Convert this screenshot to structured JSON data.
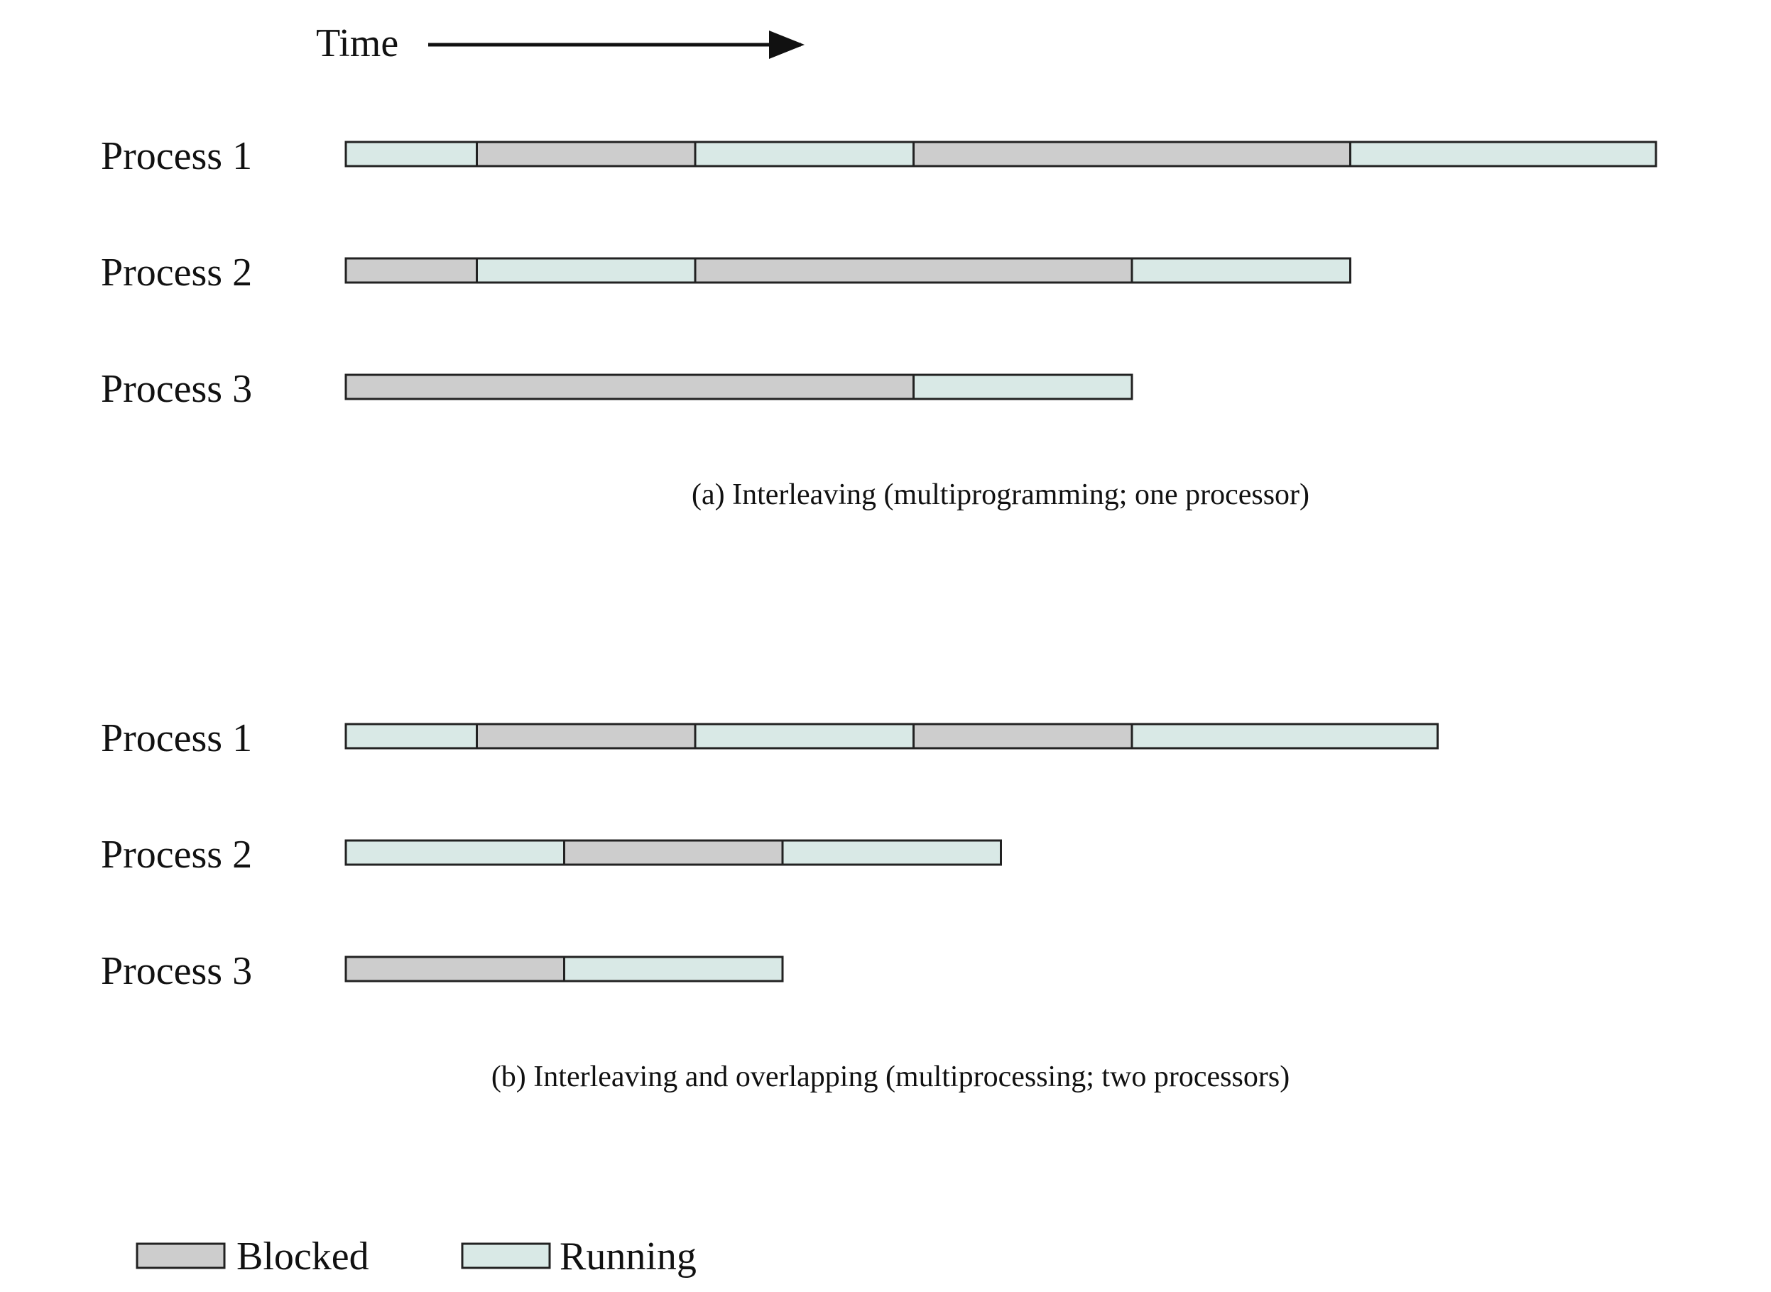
{
  "time_axis": {
    "label": "Time"
  },
  "segment_types": {
    "blocked": {
      "label": "Blocked",
      "color": "#cdcdcd"
    },
    "running": {
      "label": "Running",
      "color": "#d9e9e6"
    }
  },
  "border_color": "#222222",
  "panels": [
    {
      "id": "a",
      "caption": "(a) Interleaving (multiprogramming; one processor)",
      "processes": [
        {
          "label": "Process 1",
          "segments": [
            [
              "running",
              0,
              0.6
            ],
            [
              "blocked",
              0.6,
              1.6
            ],
            [
              "running",
              1.6,
              2.6
            ],
            [
              "blocked",
              2.6,
              4.6
            ],
            [
              "running",
              4.6,
              6.0
            ]
          ]
        },
        {
          "label": "Process 2",
          "segments": [
            [
              "blocked",
              0,
              0.6
            ],
            [
              "running",
              0.6,
              1.6
            ],
            [
              "blocked",
              1.6,
              3.6
            ],
            [
              "running",
              3.6,
              4.6
            ]
          ]
        },
        {
          "label": "Process 3",
          "segments": [
            [
              "blocked",
              0,
              2.6
            ],
            [
              "running",
              2.6,
              3.6
            ]
          ]
        }
      ]
    },
    {
      "id": "b",
      "caption": "(b) Interleaving and overlapping (multiprocessing; two processors)",
      "processes": [
        {
          "label": "Process 1",
          "segments": [
            [
              "running",
              0,
              0.6
            ],
            [
              "blocked",
              0.6,
              1.6
            ],
            [
              "running",
              1.6,
              2.6
            ],
            [
              "blocked",
              2.6,
              3.6
            ],
            [
              "running",
              3.6,
              5.0
            ]
          ]
        },
        {
          "label": "Process 2",
          "segments": [
            [
              "running",
              0,
              1.0
            ],
            [
              "blocked",
              1.0,
              2.0
            ],
            [
              "running",
              2.0,
              3.0
            ]
          ]
        },
        {
          "label": "Process 3",
          "segments": [
            [
              "blocked",
              0,
              1.0
            ],
            [
              "running",
              1.0,
              2.0
            ]
          ]
        }
      ]
    }
  ],
  "legend": [
    {
      "type": "blocked",
      "label": "Blocked"
    },
    {
      "type": "running",
      "label": "Running"
    }
  ]
}
